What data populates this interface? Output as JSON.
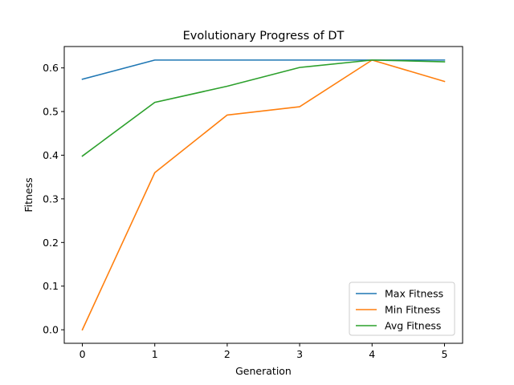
{
  "chart_data": {
    "type": "line",
    "title": "Evolutionary Progress of DT",
    "xlabel": "Generation",
    "ylabel": "Fitness",
    "x": [
      0,
      1,
      2,
      3,
      4,
      5
    ],
    "xlim": [
      -0.25,
      5.25
    ],
    "ylim": [
      -0.031,
      0.649
    ],
    "xticks": [
      "0",
      "1",
      "2",
      "3",
      "4",
      "5"
    ],
    "yticks": [
      "0.0",
      "0.1",
      "0.2",
      "0.3",
      "0.4",
      "0.5",
      "0.6"
    ],
    "grid": false,
    "legend_position": "lower-right",
    "series": [
      {
        "name": "Max Fitness",
        "color": "#1f77b4",
        "values": [
          0.574,
          0.618,
          0.618,
          0.618,
          0.618,
          0.618
        ]
      },
      {
        "name": "Min Fitness",
        "color": "#ff7f0e",
        "values": [
          0.0,
          0.36,
          0.492,
          0.511,
          0.618,
          0.569
        ]
      },
      {
        "name": "Avg Fitness",
        "color": "#2ca02c",
        "values": [
          0.398,
          0.521,
          0.558,
          0.601,
          0.618,
          0.614
        ]
      }
    ]
  }
}
